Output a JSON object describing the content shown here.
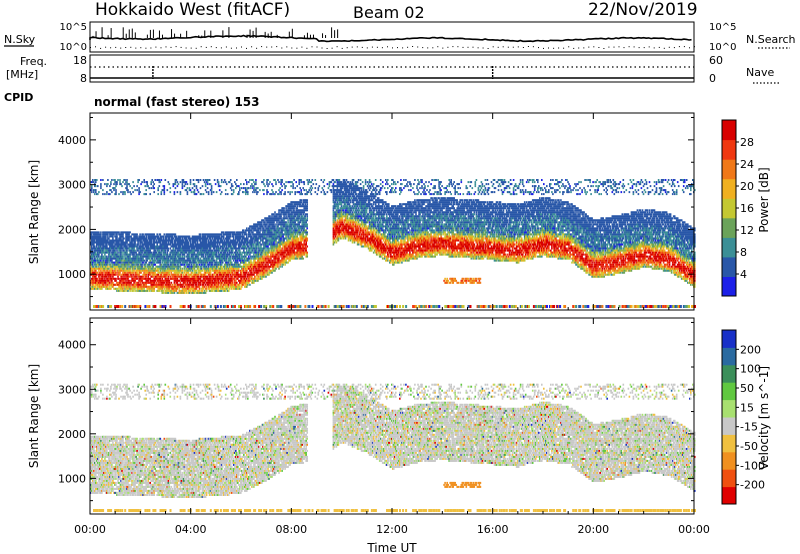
{
  "header": {
    "station": "Hokkaido West (fitACF)",
    "beam": "Beam 02",
    "date": "22/Nov/2019"
  },
  "labels": {
    "nsky": "N.Sky",
    "nsearch": "N.Search",
    "freq_top": "Freq.",
    "freq_unit": "[MHz]",
    "nave": "Nave",
    "cpid": "CPID",
    "cpid_value": "normal (fast stereo) 153"
  },
  "ticks": {
    "noise_left": [
      "10^5",
      "10^0"
    ],
    "noise_right": [
      "10^5",
      "10^0"
    ],
    "freq_left": [
      "18",
      "8"
    ],
    "nave_right": [
      "60",
      "0"
    ]
  },
  "chart_data": [
    {
      "type": "heatmap",
      "quantity": "power",
      "ylabel": "Slant Range [km]",
      "xlabel": "",
      "x_ticks": [
        "00:00",
        "04:00",
        "08:00",
        "12:00",
        "16:00",
        "20:00",
        "00:00"
      ],
      "y_ticks": [
        1000,
        2000,
        3000,
        4000
      ],
      "ylim": [
        200,
        4600
      ],
      "xlim_hours": [
        0,
        24
      ],
      "colorbar": {
        "label": "Power [dB]",
        "ticks": [
          4,
          8,
          12,
          16,
          20,
          24,
          28
        ],
        "range": [
          0,
          32
        ],
        "colors": [
          "#1c20e8",
          "#2957a8",
          "#3b8f96",
          "#6ba35a",
          "#c4c832",
          "#f0b020",
          "#f07818",
          "#f03810",
          "#d80000"
        ]
      },
      "band_center_km": [
        [
          0,
          1050
        ],
        [
          2,
          1000
        ],
        [
          4,
          950
        ],
        [
          6,
          1050
        ],
        [
          7,
          1350
        ],
        [
          8,
          1700
        ],
        [
          9,
          1800
        ],
        [
          10,
          2200
        ],
        [
          11,
          1950
        ],
        [
          12,
          1600
        ],
        [
          13,
          1750
        ],
        [
          14,
          1800
        ],
        [
          15,
          1750
        ],
        [
          16,
          1700
        ],
        [
          17,
          1650
        ],
        [
          18,
          1800
        ],
        [
          19,
          1700
        ],
        [
          20,
          1300
        ],
        [
          21,
          1400
        ],
        [
          22,
          1550
        ],
        [
          23,
          1450
        ],
        [
          24,
          1100
        ]
      ]
    },
    {
      "type": "heatmap",
      "quantity": "velocity",
      "ylabel": "Slant Range [km]",
      "xlabel": "Time UT",
      "x_ticks": [
        "00:00",
        "04:00",
        "08:00",
        "12:00",
        "16:00",
        "20:00",
        "00:00"
      ],
      "y_ticks": [
        1000,
        2000,
        3000,
        4000
      ],
      "ylim": [
        200,
        4600
      ],
      "xlim_hours": [
        0,
        24
      ],
      "colorbar": {
        "label": "Velocity [m s^-1]",
        "ticks": [
          200,
          100,
          50,
          15,
          -15,
          -50,
          -100,
          -200
        ],
        "colors": [
          "#1830c8",
          "#2a6aa0",
          "#3b8f5a",
          "#60c840",
          "#a8e070",
          "#c8c8c8",
          "#f0c040",
          "#f09020",
          "#f05010",
          "#e00000"
        ]
      }
    }
  ]
}
